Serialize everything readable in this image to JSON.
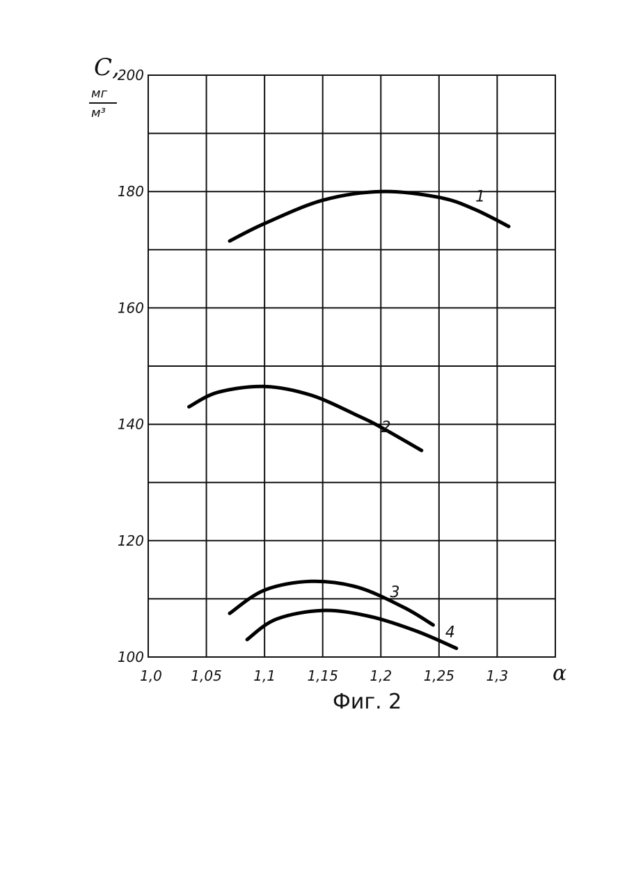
{
  "chart_data": {
    "type": "line",
    "title": "",
    "caption": "Фиг. 2",
    "ylabel": {
      "symbol": "С,",
      "unit_numerator": "мг",
      "unit_denominator": "м³"
    },
    "xlabel": "α",
    "xlim": [
      1.0,
      1.35
    ],
    "ylim": [
      100,
      200
    ],
    "grid": true,
    "x_ticks": [
      {
        "value": 1.0,
        "label": "1,0"
      },
      {
        "value": 1.05,
        "label": "1,05"
      },
      {
        "value": 1.1,
        "label": "1,1"
      },
      {
        "value": 1.15,
        "label": "1,15"
      },
      {
        "value": 1.2,
        "label": "1,2"
      },
      {
        "value": 1.25,
        "label": "1,25"
      },
      {
        "value": 1.3,
        "label": "1,3"
      }
    ],
    "y_ticks": [
      {
        "value": 100,
        "label": "100"
      },
      {
        "value": 120,
        "label": "120"
      },
      {
        "value": 140,
        "label": "140"
      },
      {
        "value": 160,
        "label": "160"
      },
      {
        "value": 180,
        "label": "180"
      },
      {
        "value": 200,
        "label": "200"
      }
    ],
    "series": [
      {
        "name": "1",
        "x": [
          1.07,
          1.1,
          1.15,
          1.2,
          1.25,
          1.28,
          1.31
        ],
        "y": [
          171.5,
          174.5,
          178.5,
          180.0,
          179.0,
          177.0,
          174.0
        ]
      },
      {
        "name": "2",
        "x": [
          1.035,
          1.06,
          1.1,
          1.14,
          1.18,
          1.2,
          1.235
        ],
        "y": [
          143.0,
          145.5,
          146.5,
          145.0,
          141.5,
          139.5,
          135.5
        ]
      },
      {
        "name": "3",
        "x": [
          1.07,
          1.1,
          1.14,
          1.18,
          1.22,
          1.245
        ],
        "y": [
          107.5,
          111.5,
          113.0,
          112.0,
          108.5,
          105.5
        ]
      },
      {
        "name": "4",
        "x": [
          1.085,
          1.11,
          1.15,
          1.19,
          1.23,
          1.265
        ],
        "y": [
          103.0,
          106.5,
          108.0,
          107.0,
          104.5,
          101.5
        ]
      }
    ]
  }
}
